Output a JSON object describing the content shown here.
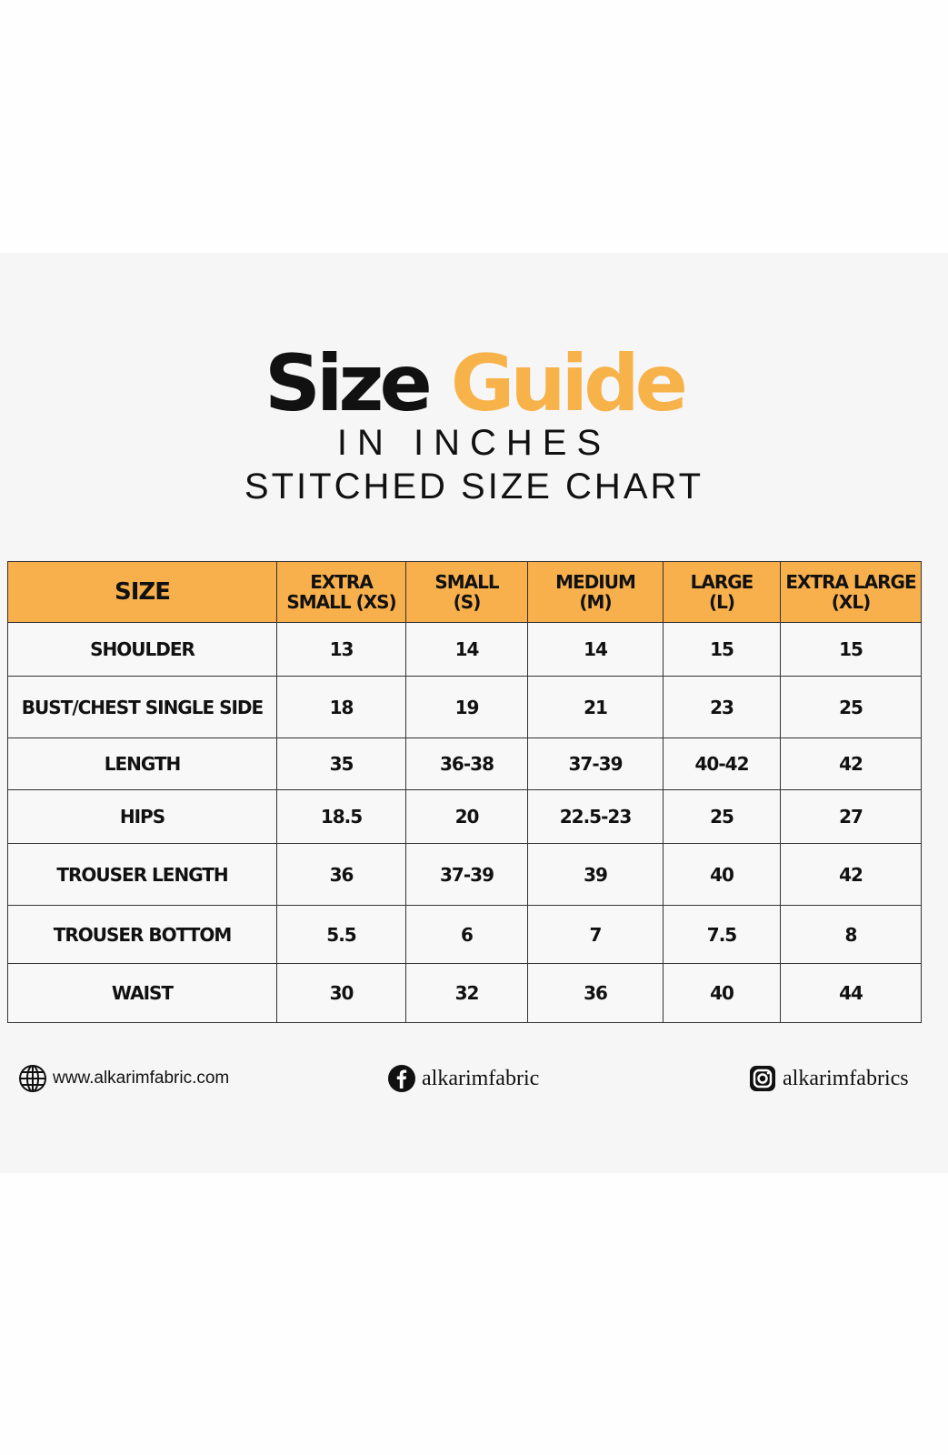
{
  "title": {
    "word1": "Size",
    "word2": "Guide",
    "subtitle1": "IN INCHES",
    "subtitle2": "STITCHED SIZE CHART"
  },
  "colors": {
    "accent": "#f8b04c",
    "text": "#111111"
  },
  "table": {
    "headers": [
      [
        "SIZE",
        ""
      ],
      [
        "EXTRA",
        "SMALL (XS)"
      ],
      [
        "SMALL",
        "(S)"
      ],
      [
        "MEDIUM",
        "(M)"
      ],
      [
        "LARGE",
        "(L)"
      ],
      [
        "EXTRA LARGE",
        "(XL)"
      ]
    ],
    "rows": [
      [
        "SHOULDER",
        "13",
        "14",
        "14",
        "15",
        "15"
      ],
      [
        "BUST/CHEST SINGLE SIDE",
        "18",
        "19",
        "21",
        "23",
        "25"
      ],
      [
        "LENGTH",
        "35",
        "36-38",
        "37-39",
        "40-42",
        "42"
      ],
      [
        "HIPS",
        "18.5",
        "20",
        "22.5-23",
        "25",
        "27"
      ],
      [
        "TROUSER LENGTH",
        "36",
        "37-39",
        "39",
        "40",
        "42"
      ],
      [
        "TROUSER BOTTOM",
        "5.5",
        "6",
        "7",
        "7.5",
        "8"
      ],
      [
        "WAIST",
        "30",
        "32",
        "36",
        "40",
        "44"
      ]
    ]
  },
  "footer": {
    "website": "www.alkarimfabric.com",
    "facebook": "alkarimfabric",
    "instagram": "alkarimfabrics"
  }
}
